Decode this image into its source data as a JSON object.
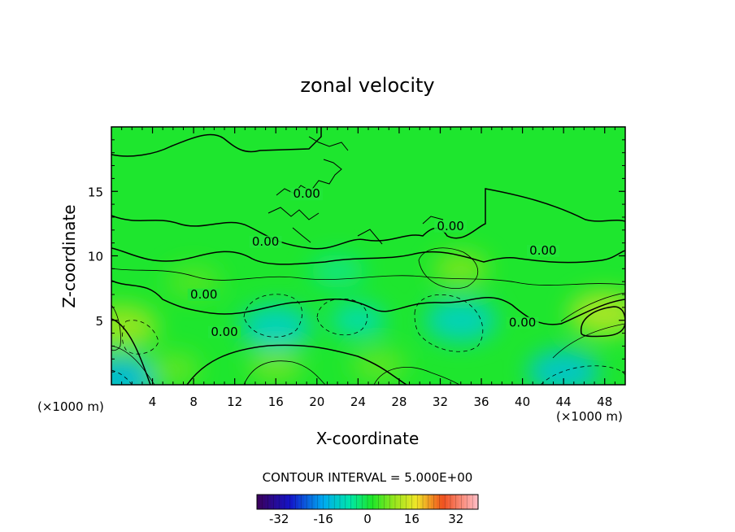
{
  "chart_data": {
    "type": "heatmap",
    "title": "zonal velocity",
    "xlabel": "X-coordinate",
    "ylabel": "Z-coordinate",
    "x_unit_left": "(×1000 m)",
    "x_unit_right": "(×1000 m)",
    "xlim": [
      0,
      50
    ],
    "ylim": [
      0,
      20
    ],
    "x_ticks": [
      4,
      8,
      12,
      16,
      20,
      24,
      28,
      32,
      36,
      40,
      44,
      48
    ],
    "y_ticks": [
      5,
      10,
      15
    ],
    "contour_interval_text": "CONTOUR INTERVAL = 5.000E+00",
    "contour_interval": 5,
    "colorbar": {
      "range": [
        -40,
        40
      ],
      "ticks": [
        -32,
        -16,
        0,
        16,
        32
      ],
      "colormap": "rainbow (purple → blue → cyan → green → yellow → red → pink)"
    },
    "contour_labels": [
      {
        "text": "0.00",
        "x": 15,
        "z": 10.8
      },
      {
        "text": "0.00",
        "x": 9,
        "z": 6.7
      },
      {
        "text": "0.00",
        "x": 11,
        "z": 3.8
      },
      {
        "text": "0.00",
        "x": 19,
        "z": 14.5
      },
      {
        "text": "0.00",
        "x": 33,
        "z": 12.0
      },
      {
        "text": "0.00",
        "x": 42,
        "z": 10.1
      },
      {
        "text": "0.00",
        "x": 40,
        "z": 4.5
      }
    ],
    "features": [
      {
        "x": 48,
        "z": 5.5,
        "value": 12
      },
      {
        "x": 44,
        "z": 1.0,
        "value": -12
      },
      {
        "x": 16,
        "z": 4.5,
        "value": -10
      },
      {
        "x": 24,
        "z": 5.0,
        "value": -8
      },
      {
        "x": 34,
        "z": 5.0,
        "value": -10
      },
      {
        "x": 1,
        "z": 0.5,
        "value": -14
      },
      {
        "x": 1,
        "z": 4.5,
        "value": 10
      },
      {
        "x": 34,
        "z": 9.0,
        "value": 8
      },
      {
        "x": 16,
        "z": 1.5,
        "value": 7
      },
      {
        "x": 26,
        "z": 1.5,
        "value": 6
      },
      {
        "x": 8,
        "z": 8.0,
        "value": 5
      },
      {
        "x": 6,
        "z": 1.2,
        "value": 6
      },
      {
        "x": 22,
        "z": 8.8,
        "value": -4
      }
    ]
  }
}
